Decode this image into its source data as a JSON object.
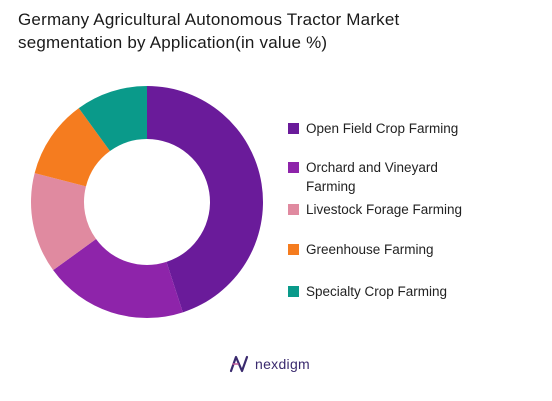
{
  "chart_data": {
    "type": "pie",
    "variant": "donut",
    "title_lines": [
      "Germany Agricultural Autonomous Tractor Market",
      "segmentation by Application(in value %)"
    ],
    "categories": [
      "Open Field Crop Farming",
      "Orchard and Vineyard Farming",
      "Livestock Forage Farming",
      "Greenhouse Farming",
      "Specialty Crop Farming"
    ],
    "values": [
      45,
      20,
      14,
      11,
      10
    ],
    "colors": [
      "#6a1b9a",
      "#8e24aa",
      "#e08aa0",
      "#f57c1f",
      "#0a9a8a"
    ],
    "legend_position": "right",
    "legend": [
      {
        "lines": [
          "Open Field Crop Farming"
        ],
        "color": "#6a1b9a"
      },
      {
        "lines": [
          "Orchard and Vineyard",
          "Farming"
        ],
        "color": "#8e24aa"
      },
      {
        "lines": [
          "Livestock Forage Farming"
        ],
        "color": "#e08aa0"
      },
      {
        "lines": [
          "Greenhouse Farming"
        ],
        "color": "#f57c1f"
      },
      {
        "lines": [
          "Specialty Crop Farming"
        ],
        "color": "#0a9a8a"
      }
    ]
  },
  "brand": {
    "name": "nexdigm",
    "icon": "nexdigm-logo-icon",
    "color": "#3a2a6e"
  }
}
